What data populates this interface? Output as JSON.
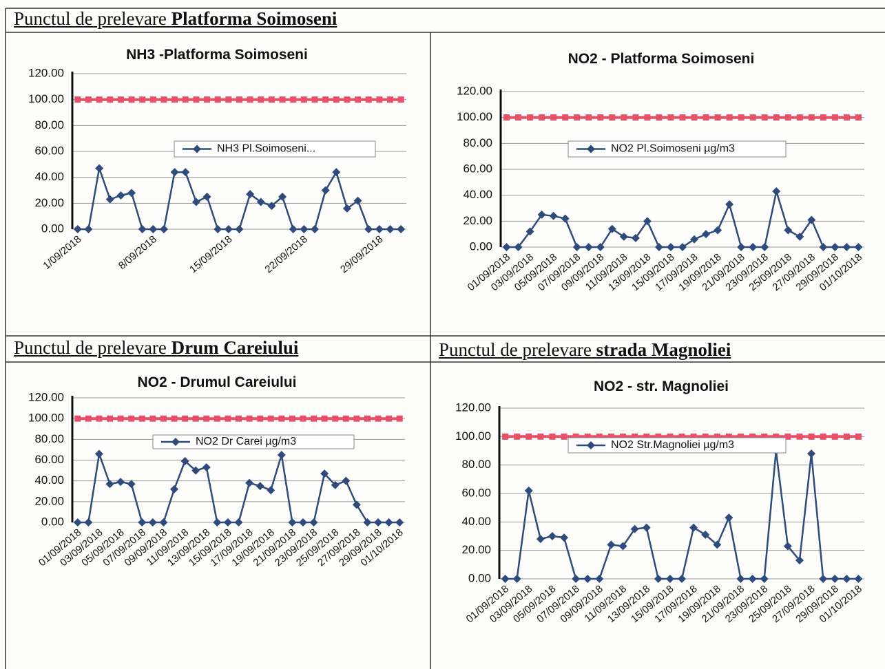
{
  "sections": [
    {
      "prefix": "Punctul de prelevare",
      "place": "Platforma Soimoseni"
    },
    {
      "prefix": "Punctul de prelevare",
      "place": "Drum Careiului"
    },
    {
      "prefix": "Punctul de prelevare",
      "place": "strada Magnoliei"
    }
  ],
  "chart_data": [
    {
      "type": "line",
      "title": "NH3 -Platforma Soimoseni",
      "categories": [
        "1/09/2018",
        null,
        null,
        null,
        null,
        null,
        null,
        "8/09/2018",
        null,
        null,
        null,
        null,
        null,
        null,
        "15/09/2018",
        null,
        null,
        null,
        null,
        null,
        null,
        "22/09/2018",
        null,
        null,
        null,
        null,
        null,
        null,
        "29/09/2018",
        null,
        null
      ],
      "series": [
        {
          "name": "NH3 Pl.Soimoseni...",
          "color": "#2f4b7c",
          "values": [
            0,
            0,
            47,
            23,
            26,
            28,
            0,
            0,
            0,
            44,
            44,
            21,
            25,
            0,
            0,
            0,
            27,
            21,
            18,
            25,
            0,
            0,
            0,
            30,
            44,
            16,
            22,
            0,
            0,
            0,
            0
          ]
        },
        {
          "color": "#e8506a",
          "values": [
            100,
            100,
            100,
            100,
            100,
            100,
            100,
            100,
            100,
            100,
            100,
            100,
            100,
            100,
            100,
            100,
            100,
            100,
            100,
            100,
            100,
            100,
            100,
            100,
            100,
            100,
            100,
            100,
            100,
            100,
            100
          ]
        }
      ],
      "ylim": [
        0,
        120
      ],
      "yticks": [
        {
          "value": 0,
          "label": "0.00"
        },
        {
          "value": 20,
          "label": "20.00"
        },
        {
          "value": 40,
          "label": "40.00"
        },
        {
          "value": 60,
          "label": "60.00"
        },
        {
          "value": 80,
          "label": "80.00"
        },
        {
          "value": 100,
          "label": "100.00"
        },
        {
          "value": 120,
          "label": "120.00"
        }
      ],
      "grid": true
    },
    {
      "type": "line",
      "title": "NO2 - Platforma Soimoseni",
      "categories": [
        "01/09/2018",
        null,
        "03/09/2018",
        null,
        "05/09/2018",
        null,
        "07/09/2018",
        null,
        "09/09/2018",
        null,
        "11/09/2018",
        null,
        "13/09/2018",
        null,
        "15/09/2018",
        null,
        "17/09/2018",
        null,
        "19/09/2018",
        null,
        "21/09/2018",
        null,
        "23/09/2018",
        null,
        "25/09/2018",
        null,
        "27/09/2018",
        null,
        "29/09/2018",
        null,
        "01/10/2018"
      ],
      "series": [
        {
          "name": "NO2 Pl.Soimoseni µg/m3",
          "color": "#2f4b7c",
          "values": [
            0,
            0,
            12,
            25,
            24,
            22,
            0,
            0,
            0,
            14,
            8,
            7,
            20,
            0,
            0,
            0,
            6,
            10,
            13,
            33,
            0,
            0,
            0,
            43,
            13,
            8,
            21,
            0,
            0,
            0,
            0
          ]
        },
        {
          "color": "#e8506a",
          "values": [
            100,
            100,
            100,
            100,
            100,
            100,
            100,
            100,
            100,
            100,
            100,
            100,
            100,
            100,
            100,
            100,
            100,
            100,
            100,
            100,
            100,
            100,
            100,
            100,
            100,
            100,
            100,
            100,
            100,
            100,
            100
          ]
        }
      ],
      "ylim": [
        0,
        120
      ],
      "yticks": [
        {
          "value": 0,
          "label": "0.00"
        },
        {
          "value": 20,
          "label": "20.00"
        },
        {
          "value": 40,
          "label": "40.00"
        },
        {
          "value": 60,
          "label": "60.00"
        },
        {
          "value": 80,
          "label": "80.00"
        },
        {
          "value": 100,
          "label": "100.00"
        },
        {
          "value": 120,
          "label": "120.00"
        }
      ],
      "grid": true
    },
    {
      "type": "line",
      "title": "NO2 - Drumul Careiului",
      "categories": [
        "01/09/2018",
        null,
        "03/09/2018",
        null,
        "05/09/2018",
        null,
        "07/09/2018",
        null,
        "09/09/2018",
        null,
        "11/09/2018",
        null,
        "13/09/2018",
        null,
        "15/09/2018",
        null,
        "17/09/2018",
        null,
        "19/09/2018",
        null,
        "21/09/2018",
        null,
        "23/09/2018",
        null,
        "25/09/2018",
        null,
        "27/09/2018",
        null,
        "29/09/2018",
        null,
        "01/10/2018"
      ],
      "series": [
        {
          "name": "NO2 Dr Carei  µg/m3",
          "color": "#2f4b7c",
          "values": [
            0,
            0,
            66,
            37,
            39,
            37,
            0,
            0,
            0,
            32,
            59,
            50,
            53,
            0,
            0,
            0,
            38,
            35,
            31,
            65,
            0,
            0,
            0,
            47,
            36,
            40,
            17,
            0,
            0,
            0,
            0
          ]
        },
        {
          "color": "#e8506a",
          "values": [
            100,
            100,
            100,
            100,
            100,
            100,
            100,
            100,
            100,
            100,
            100,
            100,
            100,
            100,
            100,
            100,
            100,
            100,
            100,
            100,
            100,
            100,
            100,
            100,
            100,
            100,
            100,
            100,
            100,
            100,
            100
          ]
        }
      ],
      "ylim": [
        0,
        120
      ],
      "yticks": [
        {
          "value": 0,
          "label": "0.00"
        },
        {
          "value": 20,
          "label": "20.00"
        },
        {
          "value": 40,
          "label": "40.00"
        },
        {
          "value": 60,
          "label": "60.00"
        },
        {
          "value": 80,
          "label": "80.00"
        },
        {
          "value": 100,
          "label": "100.00"
        },
        {
          "value": 120,
          "label": "120.00"
        }
      ],
      "grid": true
    },
    {
      "type": "line",
      "title": "NO2 - str. Magnoliei",
      "categories": [
        "01/09/2018",
        null,
        "03/09/2018",
        null,
        "05/09/2018",
        null,
        "07/09/2018",
        null,
        "09/09/2018",
        null,
        "11/09/2018",
        null,
        "13/09/2018",
        null,
        "15/09/2018",
        null,
        "17/09/2018",
        null,
        "19/09/2018",
        null,
        "21/09/2018",
        null,
        "23/09/2018",
        null,
        "25/09/2018",
        null,
        "27/09/2018",
        null,
        "29/09/2018",
        null,
        "01/10/2018"
      ],
      "series": [
        {
          "name": "NO2 Str.Magnoliei  µg/m3",
          "color": "#2f4b7c",
          "values": [
            0,
            0,
            62,
            28,
            30,
            29,
            0,
            0,
            0,
            24,
            23,
            35,
            36,
            0,
            0,
            0,
            36,
            31,
            24,
            43,
            0,
            0,
            0,
            90,
            23,
            13,
            88,
            0,
            0,
            0,
            0
          ]
        },
        {
          "color": "#e8506a",
          "values": [
            100,
            100,
            100,
            100,
            100,
            100,
            100,
            100,
            100,
            100,
            100,
            100,
            100,
            100,
            100,
            100,
            100,
            100,
            100,
            100,
            100,
            100,
            100,
            100,
            100,
            100,
            100,
            100,
            100,
            100,
            100
          ]
        }
      ],
      "ylim": [
        0,
        120
      ],
      "yticks": [
        {
          "value": 0,
          "label": "0.00"
        },
        {
          "value": 20,
          "label": "20.00"
        },
        {
          "value": 40,
          "label": "40.00"
        },
        {
          "value": 60,
          "label": "60.00"
        },
        {
          "value": 80,
          "label": "80.00"
        },
        {
          "value": 100,
          "label": "100.00"
        },
        {
          "value": 120,
          "label": "120.00"
        }
      ],
      "grid": true
    }
  ]
}
